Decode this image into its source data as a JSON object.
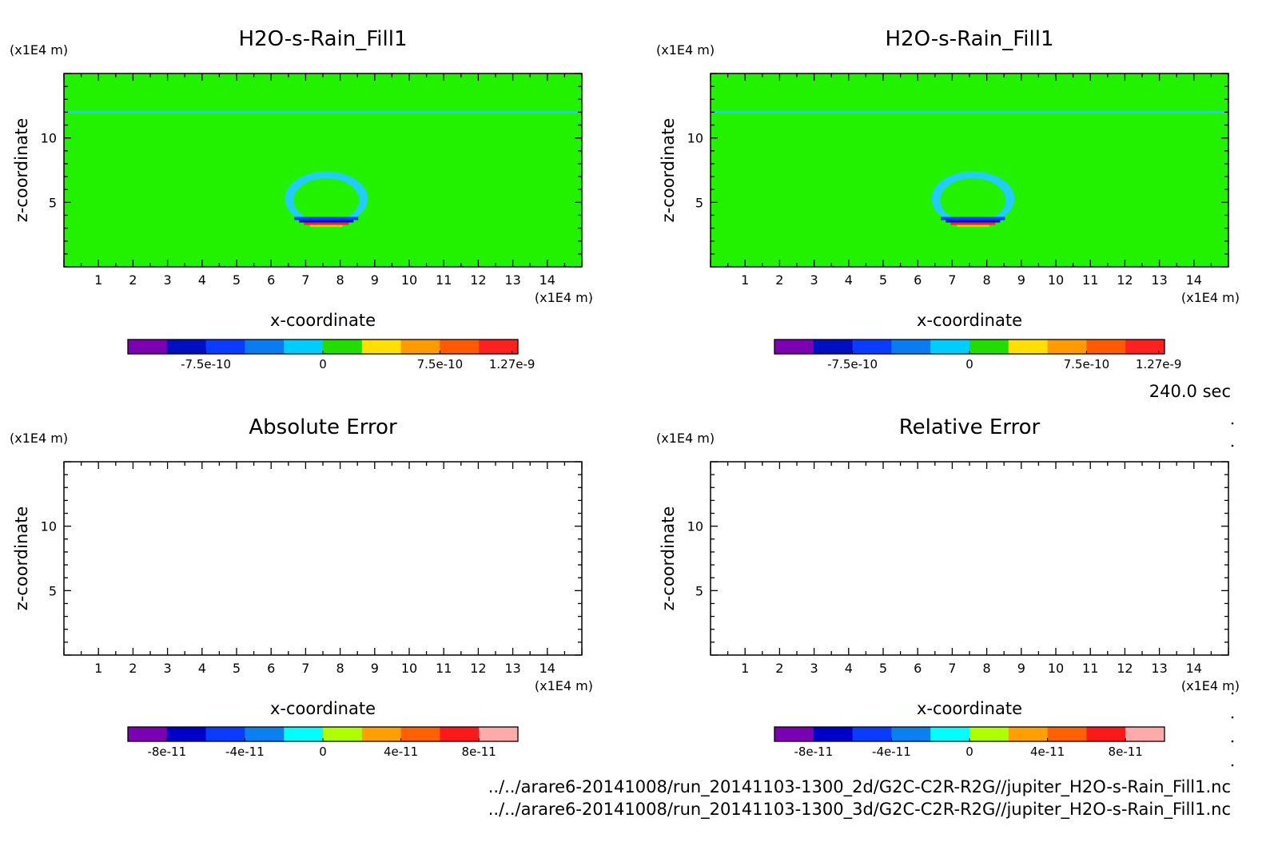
{
  "time_label": "240.0 sec",
  "files": [
    "../../arare6-20141008/run_20141103-1300_2d/G2C-C2R-R2G//jupiter_H2O-s-Rain_Fill1.nc",
    "../../arare6-20141008/run_20141103-1300_3d/G2C-C2R-R2G//jupiter_H2O-s-Rain_Fill1.nc"
  ],
  "colors": {
    "field_background": "#22f200",
    "band": "#22ccff",
    "ring": "#22ccff",
    "cbar1": [
      "#7a00b2",
      "#0010c0",
      "#0a3cff",
      "#0a7cf0",
      "#00ccff",
      "#22dd00",
      "#ffe000",
      "#ff9a00",
      "#ff5a00",
      "#ff2020"
    ],
    "cbar2": [
      "#7a00b2",
      "#0000c8",
      "#0a3cff",
      "#0a80f0",
      "#00ffff",
      "#b0ff00",
      "#ffa000",
      "#ff6000",
      "#ff1818",
      "#ffaaaa"
    ]
  },
  "chart_data": [
    {
      "type": "heatmap",
      "title": "H2O-s-Rain_Fill1",
      "xlabel": "x-coordinate",
      "ylabel": "z-coordinate",
      "x_unit": "(x1E4 m)",
      "y_unit": "(x1E4 m)",
      "xlim": [
        0,
        15
      ],
      "ylim": [
        0,
        15
      ],
      "xticks": [
        1,
        2,
        3,
        4,
        5,
        6,
        7,
        8,
        9,
        10,
        11,
        12,
        13,
        14
      ],
      "yticks": [
        5,
        10
      ],
      "features": {
        "band_z": [
          11.9,
          12.1
        ],
        "ring_center": [
          7.6,
          5.3
        ],
        "ring_radius_x": [
          0.95,
          1.2
        ],
        "ring_radius_z": [
          1.7,
          2.1
        ],
        "dipole_z": 3.5
      },
      "colorbar": {
        "levels": 10,
        "tick_labels": [
          "-7.5e-10",
          "0",
          "7.5e-10",
          "1.27e-9"
        ]
      }
    },
    {
      "type": "heatmap",
      "title": "H2O-s-Rain_Fill1",
      "xlabel": "x-coordinate",
      "ylabel": "z-coordinate",
      "x_unit": "(x1E4 m)",
      "y_unit": "(x1E4 m)",
      "xlim": [
        0,
        15
      ],
      "ylim": [
        0,
        15
      ],
      "xticks": [
        1,
        2,
        3,
        4,
        5,
        6,
        7,
        8,
        9,
        10,
        11,
        12,
        13,
        14
      ],
      "yticks": [
        5,
        10
      ],
      "features": {
        "band_z": [
          11.9,
          12.1
        ],
        "ring_center": [
          7.6,
          5.3
        ],
        "ring_radius_x": [
          0.95,
          1.2
        ],
        "ring_radius_z": [
          1.7,
          2.1
        ],
        "dipole_z": 3.5
      },
      "colorbar": {
        "levels": 10,
        "tick_labels": [
          "-7.5e-10",
          "0",
          "7.5e-10",
          "1.27e-9"
        ]
      }
    },
    {
      "type": "heatmap",
      "title": "Absolute Error",
      "xlabel": "x-coordinate",
      "ylabel": "z-coordinate",
      "x_unit": "(x1E4 m)",
      "y_unit": "(x1E4 m)",
      "xlim": [
        0,
        15
      ],
      "ylim": [
        0,
        15
      ],
      "xticks": [
        1,
        2,
        3,
        4,
        5,
        6,
        7,
        8,
        9,
        10,
        11,
        12,
        13,
        14
      ],
      "yticks": [
        5,
        10
      ],
      "empty": true,
      "colorbar": {
        "levels": 10,
        "tick_labels": [
          "-8e-11",
          "-4e-11",
          "0",
          "4e-11",
          "8e-11"
        ]
      }
    },
    {
      "type": "heatmap",
      "title": "Relative Error",
      "xlabel": "x-coordinate",
      "ylabel": "z-coordinate",
      "x_unit": "(x1E4 m)",
      "y_unit": "(x1E4 m)",
      "xlim": [
        0,
        15
      ],
      "ylim": [
        0,
        15
      ],
      "xticks": [
        1,
        2,
        3,
        4,
        5,
        6,
        7,
        8,
        9,
        10,
        11,
        12,
        13,
        14
      ],
      "yticks": [
        5,
        10
      ],
      "empty": true,
      "colorbar": {
        "levels": 10,
        "tick_labels": [
          "-8e-11",
          "-4e-11",
          "0",
          "4e-11",
          "8e-11"
        ]
      }
    }
  ]
}
